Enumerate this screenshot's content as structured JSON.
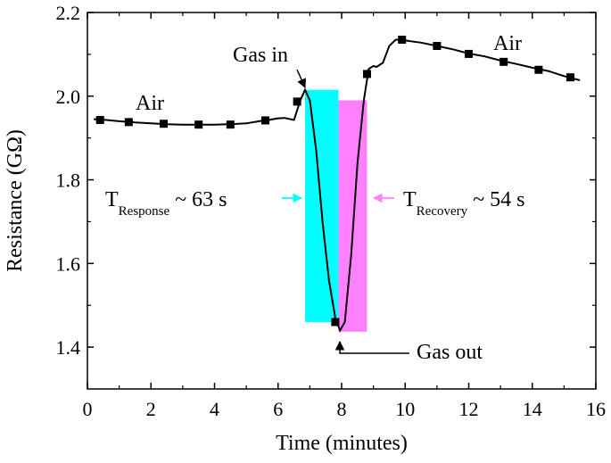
{
  "chart_data": {
    "type": "line",
    "xlabel": "Time (minutes)",
    "ylabel": "Resistance (GΩ)",
    "xlim": [
      0,
      16
    ],
    "ylim": [
      1.3,
      2.2
    ],
    "xticks": [
      0,
      2,
      4,
      6,
      8,
      10,
      12,
      14,
      16
    ],
    "yticks": [
      1.4,
      1.6,
      1.8,
      2.0,
      2.2
    ],
    "xtick_labels": [
      "0",
      "2",
      "4",
      "6",
      "8",
      "10",
      "12",
      "14",
      "16"
    ],
    "ytick_labels": [
      "1.4",
      "1.6",
      "1.8",
      "2.0",
      "2.2"
    ],
    "line": {
      "x": [
        0.2,
        0.6,
        1.0,
        1.5,
        2.0,
        2.5,
        3.0,
        3.5,
        4.0,
        4.5,
        5.0,
        5.4,
        5.7,
        6.0,
        6.2,
        6.5,
        6.7,
        6.85,
        7.0,
        7.2,
        7.4,
        7.6,
        7.8,
        7.95,
        8.1,
        8.3,
        8.5,
        8.7,
        8.85,
        9.0,
        9.1,
        9.3,
        9.5,
        9.7,
        9.9,
        10.1,
        10.5,
        11.0,
        11.5,
        12.0,
        12.5,
        13.0,
        13.5,
        14.0,
        14.5,
        15.0,
        15.5
      ],
      "y": [
        1.945,
        1.943,
        1.94,
        1.937,
        1.935,
        1.933,
        1.932,
        1.932,
        1.932,
        1.933,
        1.935,
        1.94,
        1.943,
        1.947,
        1.948,
        1.943,
        1.99,
        2.015,
        1.99,
        1.87,
        1.7,
        1.56,
        1.47,
        1.44,
        1.46,
        1.62,
        1.84,
        1.99,
        2.065,
        2.072,
        2.07,
        2.08,
        2.12,
        2.135,
        2.135,
        2.132,
        2.128,
        2.12,
        2.112,
        2.102,
        2.095,
        2.085,
        2.077,
        2.068,
        2.06,
        2.048,
        2.038
      ]
    },
    "markers": {
      "x": [
        0.4,
        1.3,
        2.4,
        3.5,
        4.5,
        5.6,
        6.6,
        7.8,
        8.8,
        9.9,
        11.0,
        12.0,
        13.1,
        14.2,
        15.2
      ],
      "y": [
        1.943,
        1.938,
        1.934,
        1.932,
        1.932,
        1.942,
        1.987,
        1.46,
        2.053,
        2.135,
        2.12,
        2.101,
        2.082,
        2.063,
        2.045
      ]
    },
    "response_region": {
      "x": [
        6.85,
        7.9
      ],
      "y": [
        1.46,
        2.015
      ],
      "color": "#00ffff"
    },
    "recovery_region": {
      "x": [
        7.9,
        8.8
      ],
      "y": [
        1.437,
        1.99
      ],
      "color": "#ff80ff"
    },
    "annotations": {
      "air_left": "Air",
      "air_right": "Air",
      "gas_in": "Gas in",
      "gas_out": "Gas out",
      "t_main": "T",
      "t_response_sub": "Response",
      "t_response_value": "~ 63 s",
      "t_recovery_sub": "Recovery",
      "t_recovery_value": "~ 54 s"
    },
    "arrow_colors": {
      "response": "#00ffff",
      "recovery": "#ff80ff"
    }
  }
}
